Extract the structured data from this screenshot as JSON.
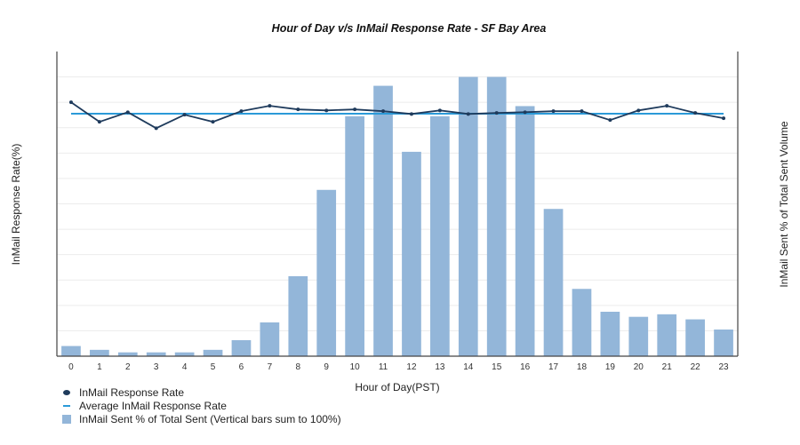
{
  "chart_data": {
    "type": "bar",
    "title": "Hour of Day v/s InMail Response Rate - SF Bay Area",
    "xlabel": "Hour of Day(PST)",
    "ylabel": "InMail Response Rate(%)",
    "ylabel_right": "InMail Sent % of Total Sent Volume",
    "categories": [
      "0",
      "1",
      "2",
      "3",
      "4",
      "5",
      "6",
      "7",
      "8",
      "9",
      "10",
      "11",
      "12",
      "13",
      "14",
      "15",
      "16",
      "17",
      "18",
      "19",
      "20",
      "21",
      "22",
      "23"
    ],
    "series": [
      {
        "name": "InMail Sent % of Total Sent (Vertical bars sum to 100%)",
        "type": "bar",
        "axis": "right",
        "units": "relative gridline units (no numeric ticks shown)",
        "values": [
          0.4,
          0.25,
          0.15,
          0.15,
          0.15,
          0.25,
          0.63,
          1.33,
          3.15,
          6.55,
          9.45,
          10.65,
          8.05,
          9.45,
          11.0,
          11.0,
          9.85,
          5.8,
          2.65,
          1.75,
          1.55,
          1.65,
          1.45,
          1.05
        ],
        "color": "#93b6d9"
      },
      {
        "name": "InMail Response Rate",
        "type": "line",
        "axis": "left",
        "units": "relative gridline units (no numeric ticks shown)",
        "values": [
          10.0,
          9.23,
          9.61,
          8.98,
          9.51,
          9.23,
          9.65,
          9.86,
          9.72,
          9.68,
          9.72,
          9.65,
          9.54,
          9.68,
          9.54,
          9.58,
          9.61,
          9.65,
          9.65,
          9.3,
          9.68,
          9.86,
          9.58,
          9.37
        ],
        "color": "#1f3b5c"
      },
      {
        "name": "Average InMail Response Rate",
        "type": "line",
        "axis": "left",
        "units": "relative gridline units (no numeric ticks shown)",
        "values": [
          9.55,
          9.55,
          9.55,
          9.55,
          9.55,
          9.55,
          9.55,
          9.55,
          9.55,
          9.55,
          9.55,
          9.55,
          9.55,
          9.55,
          9.55,
          9.55,
          9.55,
          9.55,
          9.55,
          9.55,
          9.55,
          9.55,
          9.55,
          9.55
        ],
        "color": "#2b9ad8"
      }
    ],
    "ylim": [
      0,
      12
    ],
    "grid": true,
    "gridlines": 12,
    "legend_position": "bottom-left",
    "y_tick_labels_visible": false
  },
  "legend": {
    "items": [
      {
        "label": "InMail Response Rate",
        "swatch": "dot"
      },
      {
        "label": "Average InMail Response Rate",
        "swatch": "line"
      },
      {
        "label": "InMail Sent % of Total Sent (Vertical bars sum to 100%)",
        "swatch": "bar"
      }
    ]
  },
  "colors": {
    "bar": "#93b6d9",
    "line": "#1f3b5c",
    "average": "#2b9ad8",
    "grid": "#ececec",
    "axis": "#444444"
  }
}
